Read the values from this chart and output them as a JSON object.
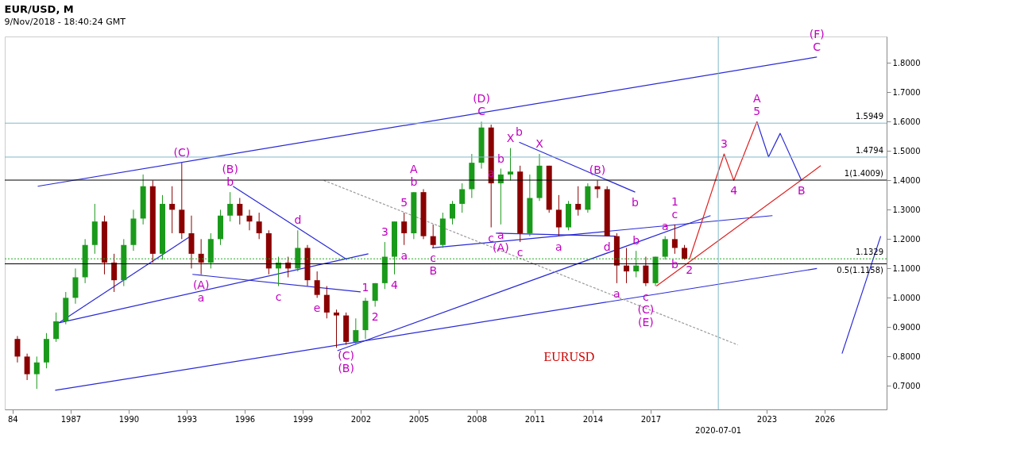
{
  "chart_data": {
    "type": "candlestick",
    "title": "EUR/USD, M",
    "subtitle": "9/Nov/2018 - 18:40:24 GMT",
    "xlim": [
      1983.8,
      2029.0
    ],
    "ylim": [
      0.62,
      1.89
    ],
    "xticks": [
      {
        "value": 1984,
        "label": "84"
      },
      1987,
      1990,
      1993,
      1996,
      1999,
      2002,
      2005,
      2008,
      2011,
      2014,
      2017,
      2023,
      2026
    ],
    "yticks": [
      {
        "value": 0.7,
        "label": "0.7000"
      },
      {
        "value": 0.8,
        "label": "0.8000"
      },
      {
        "value": 0.9,
        "label": "0.9000"
      },
      {
        "value": 1.0,
        "label": "1.0000"
      },
      {
        "value": 1.1,
        "label": "1.1000"
      },
      {
        "value": 1.2,
        "label": "1.2000"
      },
      {
        "value": 1.3,
        "label": "1.3000"
      },
      {
        "value": 1.4,
        "label": "1.4000"
      },
      {
        "value": 1.5,
        "label": "1.5000"
      },
      {
        "value": 1.6,
        "label": "1.6000"
      },
      {
        "value": 1.7,
        "label": "1.7000"
      },
      {
        "value": 1.8,
        "label": "1.8000"
      }
    ],
    "grid": false,
    "series": [
      {
        "x": [
          1984.25,
          1984.75,
          1985.25,
          1985.75,
          1986.25,
          1986.75,
          1987.25,
          1987.75,
          1988.25,
          1988.75,
          1989.25,
          1989.75,
          1990.25,
          1990.75,
          1991.25,
          1991.75,
          1992.25,
          1992.75,
          1993.25,
          1993.75,
          1994.25,
          1994.75,
          1995.25,
          1995.75,
          1996.25,
          1996.75,
          1997.25,
          1997.75,
          1998.25,
          1998.75,
          1999.25,
          1999.75,
          2000.25,
          2000.75,
          2001.25,
          2001.75,
          2002.25,
          2002.75,
          2003.25,
          2003.75,
          2004.25,
          2004.75,
          2005.25,
          2005.75,
          2006.25,
          2006.75,
          2007.25,
          2007.75,
          2008.25,
          2008.75,
          2009.25,
          2009.75,
          2010.25,
          2010.75,
          2011.25,
          2011.75,
          2012.25,
          2012.75,
          2013.25,
          2013.75,
          2014.25,
          2014.75,
          2015.25,
          2015.75,
          2016.25,
          2016.75,
          2017.25,
          2017.75,
          2018.25,
          2018.75
        ],
        "ohlc": [
          [
            0.86,
            0.87,
            0.78,
            0.8
          ],
          [
            0.8,
            0.81,
            0.72,
            0.74
          ],
          [
            0.74,
            0.8,
            0.69,
            0.78
          ],
          [
            0.78,
            0.88,
            0.76,
            0.86
          ],
          [
            0.86,
            0.95,
            0.85,
            0.92
          ],
          [
            0.92,
            1.02,
            0.91,
            1.0
          ],
          [
            1.0,
            1.1,
            0.98,
            1.07
          ],
          [
            1.07,
            1.2,
            1.05,
            1.18
          ],
          [
            1.18,
            1.32,
            1.15,
            1.26
          ],
          [
            1.26,
            1.28,
            1.08,
            1.12
          ],
          [
            1.12,
            1.15,
            1.02,
            1.06
          ],
          [
            1.06,
            1.2,
            1.04,
            1.18
          ],
          [
            1.18,
            1.3,
            1.16,
            1.27
          ],
          [
            1.27,
            1.42,
            1.25,
            1.38
          ],
          [
            1.38,
            1.4,
            1.12,
            1.15
          ],
          [
            1.15,
            1.35,
            1.13,
            1.32
          ],
          [
            1.32,
            1.38,
            1.22,
            1.3
          ],
          [
            1.3,
            1.46,
            1.2,
            1.22
          ],
          [
            1.22,
            1.28,
            1.1,
            1.15
          ],
          [
            1.15,
            1.2,
            1.08,
            1.12
          ],
          [
            1.12,
            1.22,
            1.1,
            1.2
          ],
          [
            1.2,
            1.3,
            1.18,
            1.28
          ],
          [
            1.28,
            1.36,
            1.26,
            1.32
          ],
          [
            1.32,
            1.34,
            1.25,
            1.28
          ],
          [
            1.28,
            1.3,
            1.23,
            1.26
          ],
          [
            1.26,
            1.29,
            1.2,
            1.22
          ],
          [
            1.22,
            1.23,
            1.08,
            1.1
          ],
          [
            1.1,
            1.14,
            1.04,
            1.12
          ],
          [
            1.12,
            1.14,
            1.07,
            1.1
          ],
          [
            1.1,
            1.23,
            1.09,
            1.17
          ],
          [
            1.17,
            1.18,
            1.04,
            1.06
          ],
          [
            1.06,
            1.09,
            1.0,
            1.01
          ],
          [
            1.01,
            1.04,
            0.93,
            0.95
          ],
          [
            0.95,
            0.96,
            0.83,
            0.94
          ],
          [
            0.94,
            0.95,
            0.84,
            0.85
          ],
          [
            0.85,
            0.93,
            0.84,
            0.89
          ],
          [
            0.89,
            1.0,
            0.86,
            0.99
          ],
          [
            0.99,
            1.05,
            0.97,
            1.05
          ],
          [
            1.05,
            1.19,
            1.03,
            1.14
          ],
          [
            1.14,
            1.26,
            1.08,
            1.26
          ],
          [
            1.26,
            1.29,
            1.18,
            1.22
          ],
          [
            1.22,
            1.36,
            1.2,
            1.36
          ],
          [
            1.36,
            1.37,
            1.2,
            1.21
          ],
          [
            1.21,
            1.25,
            1.17,
            1.18
          ],
          [
            1.18,
            1.29,
            1.17,
            1.27
          ],
          [
            1.27,
            1.33,
            1.25,
            1.32
          ],
          [
            1.32,
            1.39,
            1.29,
            1.37
          ],
          [
            1.37,
            1.49,
            1.34,
            1.46
          ],
          [
            1.46,
            1.6,
            1.44,
            1.58
          ],
          [
            1.58,
            1.59,
            1.24,
            1.39
          ],
          [
            1.39,
            1.44,
            1.25,
            1.42
          ],
          [
            1.42,
            1.51,
            1.4,
            1.43
          ],
          [
            1.43,
            1.45,
            1.19,
            1.22
          ],
          [
            1.22,
            1.42,
            1.21,
            1.34
          ],
          [
            1.34,
            1.49,
            1.33,
            1.45
          ],
          [
            1.45,
            1.45,
            1.29,
            1.3
          ],
          [
            1.3,
            1.35,
            1.21,
            1.24
          ],
          [
            1.24,
            1.33,
            1.23,
            1.32
          ],
          [
            1.32,
            1.38,
            1.28,
            1.3
          ],
          [
            1.3,
            1.39,
            1.29,
            1.38
          ],
          [
            1.38,
            1.4,
            1.34,
            1.37
          ],
          [
            1.37,
            1.38,
            1.21,
            1.21
          ],
          [
            1.21,
            1.22,
            1.05,
            1.11
          ],
          [
            1.11,
            1.17,
            1.05,
            1.09
          ],
          [
            1.09,
            1.16,
            1.07,
            1.11
          ],
          [
            1.11,
            1.14,
            1.04,
            1.05
          ],
          [
            1.05,
            1.14,
            1.04,
            1.14
          ],
          [
            1.14,
            1.21,
            1.13,
            1.2
          ],
          [
            1.2,
            1.25,
            1.15,
            1.17
          ],
          [
            1.17,
            1.18,
            1.13,
            1.133
          ]
        ]
      },
      {
        "type": "line",
        "color": "#2929d6",
        "x": [
          1985.3,
          2025.6
        ],
        "values": [
          1.38,
          1.82
        ]
      },
      {
        "type": "line",
        "color": "#2929d6",
        "x": [
          1986.2,
          2025.6
        ],
        "values": [
          0.685,
          1.1
        ]
      },
      {
        "type": "line",
        "color": "#2929d6",
        "x": [
          1986.4,
          1993.2
        ],
        "values": [
          0.915,
          1.21
        ]
      },
      {
        "type": "line",
        "color": "#2929d6",
        "x": [
          1986.4,
          2002.4
        ],
        "values": [
          0.915,
          1.15
        ]
      },
      {
        "type": "line",
        "color": "#2929d6",
        "x": [
          1995.4,
          2001.3
        ],
        "values": [
          1.38,
          1.13
        ]
      },
      {
        "type": "line",
        "color": "#2929d6",
        "x": [
          1993.3,
          2002.0
        ],
        "values": [
          1.08,
          1.02
        ]
      },
      {
        "type": "line",
        "color": "#2929d6",
        "x": [
          2000.8,
          2020.1
        ],
        "values": [
          0.82,
          1.28
        ]
      },
      {
        "type": "line",
        "color": "#2929d6",
        "x": [
          2005.7,
          2023.3
        ],
        "values": [
          1.17,
          1.28
        ]
      },
      {
        "type": "line",
        "color": "#2929d6",
        "x": [
          2009.0,
          2015.2
        ],
        "values": [
          1.22,
          1.21
        ]
      },
      {
        "type": "line",
        "color": "#2929d6",
        "x": [
          2010.2,
          2016.2
        ],
        "values": [
          1.53,
          1.36
        ]
      },
      {
        "type": "line",
        "color": "#2929d6",
        "x": [
          2022.5,
          2023.1,
          2023.7,
          2024.8
        ],
        "values": [
          1.6,
          1.48,
          1.56,
          1.4
        ]
      },
      {
        "type": "line",
        "color": "#2929d6",
        "x": [
          2026.9,
          2028.9
        ],
        "values": [
          0.81,
          1.21
        ]
      },
      {
        "type": "line",
        "color": "#e02020",
        "x": [
          2017.3,
          2025.8
        ],
        "values": [
          1.04,
          1.45
        ]
      },
      {
        "type": "line",
        "color": "#e02020",
        "x": [
          2019.0,
          2020.8,
          2021.3,
          2022.5
        ],
        "values": [
          1.13,
          1.49,
          1.4,
          1.6
        ]
      },
      {
        "type": "line",
        "color": "#9a9a9a",
        "line_style": "dashed",
        "x": [
          2000.1,
          2021.5
        ],
        "values": [
          1.4,
          0.84
        ]
      }
    ],
    "ref_lines": [
      {
        "axis": "y",
        "value": 1.4794,
        "label": "1.4794",
        "color": "#7fb8c9"
      },
      {
        "axis": "y",
        "value": 1.5949,
        "label": "1.5949",
        "color": "#7fb8c9"
      },
      {
        "axis": "y",
        "value": 1.1329,
        "label": "1.1329",
        "color": "#22aa22",
        "line_style": "dotted"
      },
      {
        "axis": "y",
        "value": 1.4009,
        "label": "1(1.4009)",
        "color": "#000000"
      },
      {
        "axis": "y",
        "value": 1.1158,
        "label": "0.5(1.1158)",
        "color": "#000000"
      },
      {
        "axis": "x",
        "value": 2020.5,
        "label": "2020-07-01",
        "color": "#7fb8c9"
      }
    ],
    "annotations": [
      {
        "text": "(C)",
        "x": 1992.75,
        "y": 1.46
      },
      {
        "text": "b",
        "x": 1995.25,
        "y": 1.36
      },
      {
        "text": "(B)",
        "x": 1995.25,
        "y": 1.36
      },
      {
        "text": "d",
        "x": 1998.75,
        "y": 1.23
      },
      {
        "text": "(A)",
        "x": 1993.75,
        "y": 1.08
      },
      {
        "text": "a",
        "x": 1993.75,
        "y": 1.08
      },
      {
        "text": "c",
        "x": 1997.75,
        "y": 1.04
      },
      {
        "text": "e",
        "x": 1999.75,
        "y": 1.0
      },
      {
        "text": "(C)",
        "x": 2001.25,
        "y": 0.84
      },
      {
        "text": "(B)",
        "x": 2001.25,
        "y": 0.84
      },
      {
        "text": "1",
        "x": 2002.25,
        "y": 1.0
      },
      {
        "text": "2",
        "x": 2002.75,
        "y": 0.97
      },
      {
        "text": "3",
        "x": 2003.25,
        "y": 1.19
      },
      {
        "text": "4",
        "x": 2003.75,
        "y": 1.08
      },
      {
        "text": "5",
        "x": 2004.25,
        "y": 1.29
      },
      {
        "text": "a",
        "x": 2004.25,
        "y": 1.18
      },
      {
        "text": "b",
        "x": 2004.75,
        "y": 1.36
      },
      {
        "text": "A",
        "x": 2004.75,
        "y": 1.36
      },
      {
        "text": "c",
        "x": 2005.75,
        "y": 1.17
      },
      {
        "text": "B",
        "x": 2005.75,
        "y": 1.17
      },
      {
        "text": "C",
        "x": 2008.25,
        "y": 1.6
      },
      {
        "text": "(D)",
        "x": 2008.25,
        "y": 1.6
      },
      {
        "text": "a",
        "x": 2008.75,
        "y": 1.39
      },
      {
        "text": "b",
        "x": 2009.25,
        "y": 1.44
      },
      {
        "text": "X",
        "x": 2009.75,
        "y": 1.51
      },
      {
        "text": "c",
        "x": 2008.75,
        "y": 1.24
      },
      {
        "text": "a",
        "x": 2009.25,
        "y": 1.25
      },
      {
        "text": "(A)",
        "x": 2009.25,
        "y": 1.25
      },
      {
        "text": "b",
        "x": 2010.2,
        "y": 1.53
      },
      {
        "text": "X",
        "x": 2011.25,
        "y": 1.49
      },
      {
        "text": "c",
        "x": 2010.25,
        "y": 1.19
      },
      {
        "text": "a",
        "x": 2012.25,
        "y": 1.21
      },
      {
        "text": "(B)",
        "x": 2014.25,
        "y": 1.4
      },
      {
        "text": "b",
        "x": 2016.2,
        "y": 1.36
      },
      {
        "text": "d",
        "x": 2014.75,
        "y": 1.21
      },
      {
        "text": "b",
        "x": 2016.25,
        "y": 1.16
      },
      {
        "text": "a",
        "x": 2017.75,
        "y": 1.21
      },
      {
        "text": "c",
        "x": 2018.25,
        "y": 1.25
      },
      {
        "text": "1",
        "x": 2018.25,
        "y": 1.25
      },
      {
        "text": "b",
        "x": 2018.25,
        "y": 1.15
      },
      {
        "text": "a",
        "x": 2015.25,
        "y": 1.05
      },
      {
        "text": "c",
        "x": 2016.75,
        "y": 1.04
      },
      {
        "text": "(C)",
        "x": 2016.75,
        "y": 1.04
      },
      {
        "text": "(E)",
        "x": 2016.75,
        "y": 1.04
      },
      {
        "text": "2",
        "x": 2019.0,
        "y": 1.13
      },
      {
        "text": "3",
        "x": 2020.8,
        "y": 1.49
      },
      {
        "text": "4",
        "x": 2021.3,
        "y": 1.4
      },
      {
        "text": "5",
        "x": 2022.5,
        "y": 1.6
      },
      {
        "text": "A",
        "x": 2022.5,
        "y": 1.6
      },
      {
        "text": "B",
        "x": 2024.8,
        "y": 1.4
      },
      {
        "text": "C",
        "x": 2025.6,
        "y": 1.82
      },
      {
        "text": "(F)",
        "x": 2025.6,
        "y": 1.82
      },
      "EURUSD"
    ]
  }
}
